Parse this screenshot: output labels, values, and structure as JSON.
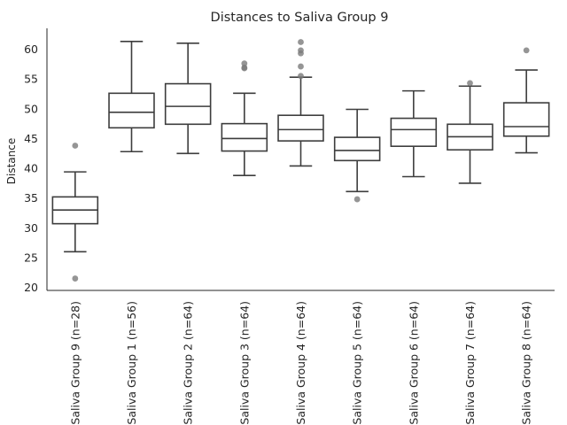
{
  "chart_data": {
    "type": "box",
    "title": "Distances to Saliva Group 9",
    "xlabel": "",
    "ylabel": "Distance",
    "ylim": [
      19.5,
      63.5
    ],
    "yticks": [
      20,
      25,
      30,
      35,
      40,
      45,
      50,
      55,
      60
    ],
    "grid": false,
    "categories": [
      "Saliva Group 9 (n=28)",
      "Saliva Group 1 (n=56)",
      "Saliva Group 2 (n=64)",
      "Saliva Group 3 (n=64)",
      "Saliva Group 4 (n=64)",
      "Saliva Group 5 (n=64)",
      "Saliva Group 6 (n=64)",
      "Saliva Group 7 (n=64)",
      "Saliva Group 8 (n=64)"
    ],
    "boxes": [
      {
        "whisker_low": 26.0,
        "q1": 30.7,
        "median": 33.0,
        "q3": 35.2,
        "whisker_high": 39.4,
        "outliers": [
          21.5,
          43.8
        ]
      },
      {
        "whisker_low": 42.8,
        "q1": 46.8,
        "median": 49.4,
        "q3": 52.6,
        "whisker_high": 61.3,
        "outliers": []
      },
      {
        "whisker_low": 42.5,
        "q1": 47.4,
        "median": 50.4,
        "q3": 54.2,
        "whisker_high": 61.0,
        "outliers": []
      },
      {
        "whisker_low": 38.8,
        "q1": 42.9,
        "median": 45.0,
        "q3": 47.5,
        "whisker_high": 52.6,
        "outliers": [
          56.8,
          56.9,
          57.6
        ]
      },
      {
        "whisker_low": 40.4,
        "q1": 44.6,
        "median": 46.5,
        "q3": 48.9,
        "whisker_high": 55.3,
        "outliers": [
          55.5,
          57.1,
          59.3,
          59.8,
          61.2
        ]
      },
      {
        "whisker_low": 36.1,
        "q1": 41.3,
        "median": 43.0,
        "q3": 45.2,
        "whisker_high": 49.9,
        "outliers": [
          34.8
        ]
      },
      {
        "whisker_low": 38.6,
        "q1": 43.7,
        "median": 46.5,
        "q3": 48.4,
        "whisker_high": 53.0,
        "outliers": []
      },
      {
        "whisker_low": 37.5,
        "q1": 43.1,
        "median": 45.3,
        "q3": 47.4,
        "whisker_high": 53.8,
        "outliers": [
          54.3
        ]
      },
      {
        "whisker_low": 42.6,
        "q1": 45.4,
        "median": 47.0,
        "q3": 51.0,
        "whisker_high": 56.5,
        "outliers": [
          59.8
        ]
      }
    ],
    "colors": {
      "box_fill": "#ffffff",
      "box_line": "#3d3d3d",
      "outlier": "#7a7a7a",
      "axis": "#262626"
    }
  }
}
